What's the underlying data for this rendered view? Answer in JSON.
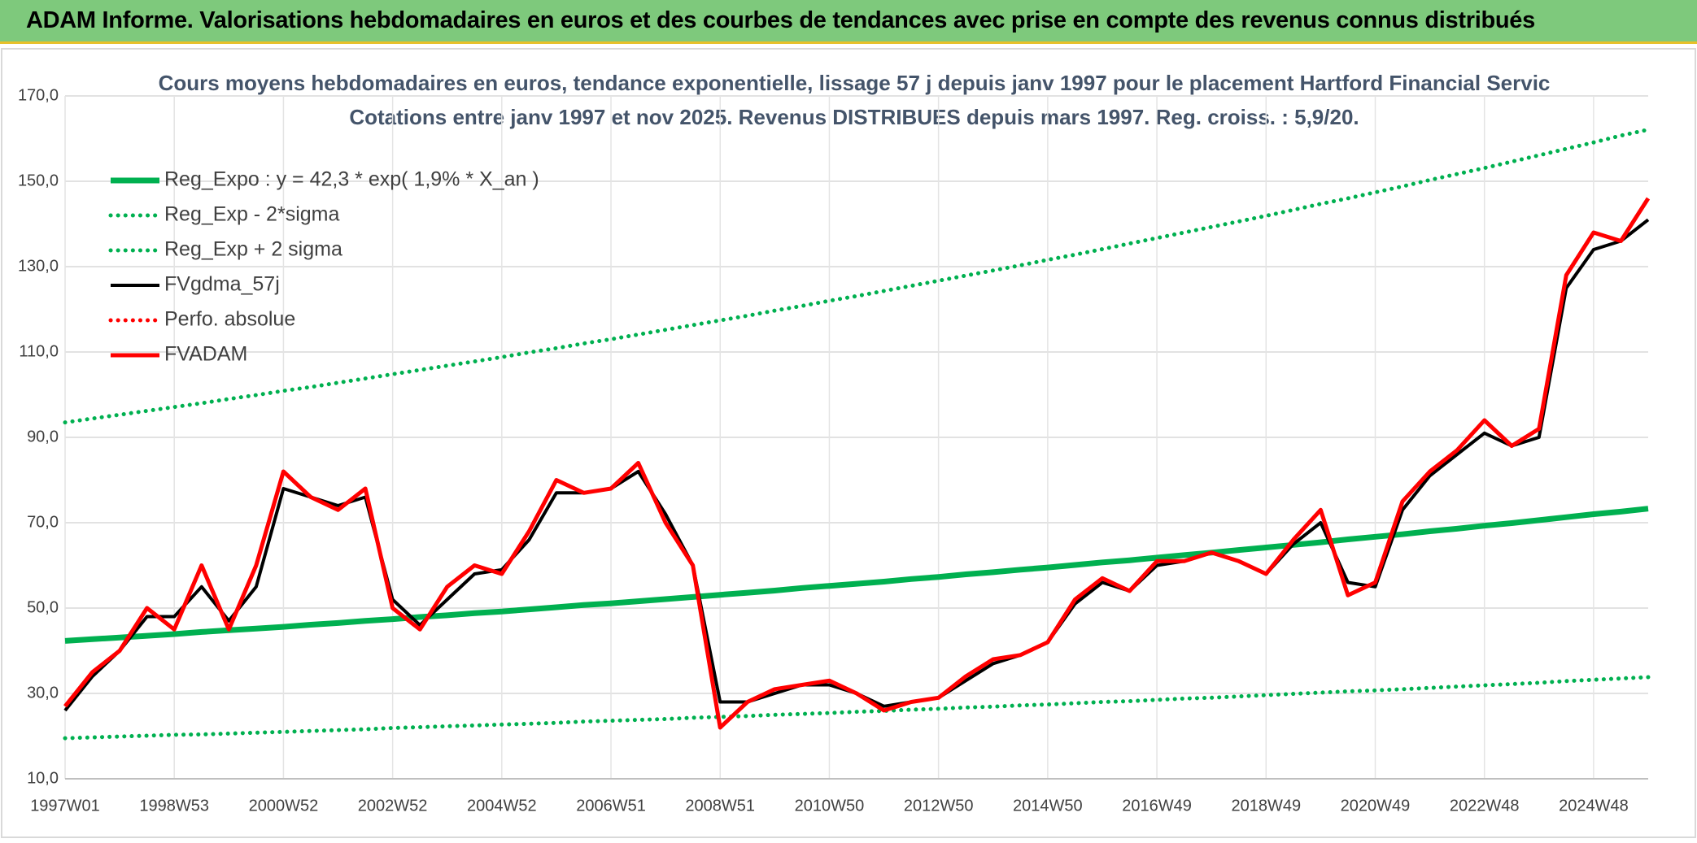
{
  "header": {
    "title": "ADAM Informe. Valorisations hebdomadaires en euros et des courbes de tendances avec prise en compte des revenus connus distribués"
  },
  "chart_data": {
    "type": "line",
    "title": "Cours moyens hebdomadaires en euros, tendance exponentielle, lissage 57 j depuis janv 1997 pour le placement Hartford Financial Servic",
    "subtitle": "Cotations entre janv 1997 et nov 2025. Revenus DISTRIBUES depuis mars 1997. Reg. croiss. : 5,9/20.",
    "categories": [
      "1997W01",
      null,
      null,
      null,
      "1998W53",
      null,
      null,
      null,
      "2000W52",
      null,
      null,
      null,
      "2002W52",
      null,
      null,
      null,
      "2004W52",
      null,
      null,
      null,
      "2006W51",
      null,
      null,
      null,
      "2008W51",
      null,
      null,
      null,
      "2010W50",
      null,
      null,
      null,
      "2012W50",
      null,
      null,
      null,
      "2014W50",
      null,
      null,
      null,
      "2016W49",
      null,
      null,
      null,
      "2018W49",
      null,
      null,
      null,
      "2020W49",
      null,
      null,
      null,
      "2022W48",
      null,
      null,
      null,
      "2024W48",
      null,
      null
    ],
    "ylim": [
      10,
      170
    ],
    "yticks": [
      {
        "value": 10,
        "label": "10,0"
      },
      {
        "value": 30,
        "label": "30,0"
      },
      {
        "value": 50,
        "label": "50,0"
      },
      {
        "value": 70,
        "label": "70,0"
      },
      {
        "value": 90,
        "label": "90,0"
      },
      {
        "value": 110,
        "label": "110,0"
      },
      {
        "value": 130,
        "label": "130,0"
      },
      {
        "value": 150,
        "label": "150,0"
      },
      {
        "value": 170,
        "label": "170,0"
      }
    ],
    "grid": true,
    "legend": "top-left",
    "series": [
      {
        "name": "Reg_Expo : y = 42,3 * exp( 1,9% *  X_an )",
        "color": "#00b050",
        "style": "solid",
        "values": [
          42.3,
          42.7,
          43.1,
          43.5,
          43.9,
          44.4,
          44.8,
          45.2,
          45.6,
          46.1,
          46.5,
          47.0,
          47.4,
          47.9,
          48.3,
          48.8,
          49.2,
          49.7,
          50.2,
          50.7,
          51.1,
          51.6,
          52.1,
          52.6,
          53.1,
          53.6,
          54.1,
          54.7,
          55.2,
          55.7,
          56.2,
          56.8,
          57.3,
          57.9,
          58.4,
          59.0,
          59.5,
          60.1,
          60.7,
          61.2,
          61.8,
          62.4,
          63.0,
          63.6,
          64.2,
          64.8,
          65.4,
          66.1,
          66.7,
          67.3,
          68.0,
          68.6,
          69.3,
          69.9,
          70.6,
          71.3,
          72.0,
          72.6,
          73.3
        ]
      },
      {
        "name": "Reg_Exp - 2*sigma",
        "color": "#00b050",
        "style": "dotted",
        "values": [
          19.5,
          19.7,
          19.9,
          20.1,
          20.3,
          20.4,
          20.6,
          20.8,
          21.0,
          21.2,
          21.4,
          21.6,
          21.9,
          22.1,
          22.3,
          22.5,
          22.7,
          22.9,
          23.1,
          23.4,
          23.6,
          23.8,
          24.0,
          24.3,
          24.5,
          24.7,
          25.0,
          25.2,
          25.4,
          25.7,
          25.9,
          26.2,
          26.4,
          26.7,
          26.9,
          27.2,
          27.4,
          27.7,
          28.0,
          28.2,
          28.5,
          28.8,
          29.0,
          29.3,
          29.6,
          29.9,
          30.2,
          30.5,
          30.7,
          31.0,
          31.3,
          31.6,
          31.9,
          32.2,
          32.5,
          32.9,
          33.2,
          33.5,
          33.8
        ]
      },
      {
        "name": "Reg_Exp + 2 sigma",
        "color": "#00b050",
        "style": "dotted",
        "values": [
          93.5,
          94.4,
          95.3,
          96.2,
          97.1,
          98.0,
          99.0,
          99.9,
          100.9,
          101.8,
          102.8,
          103.8,
          104.8,
          105.8,
          106.8,
          107.8,
          108.8,
          109.9,
          110.9,
          112.0,
          113.0,
          114.1,
          115.2,
          116.3,
          117.4,
          118.5,
          119.7,
          120.8,
          122.0,
          123.1,
          124.3,
          125.5,
          126.7,
          127.9,
          129.1,
          130.3,
          131.6,
          132.8,
          134.1,
          135.4,
          136.7,
          138.0,
          139.3,
          140.6,
          141.9,
          143.3,
          144.7,
          146.0,
          147.4,
          148.8,
          150.3,
          151.7,
          153.1,
          154.6,
          156.1,
          157.6,
          159.1,
          160.7,
          162.1
        ]
      },
      {
        "name": "FVgdma_57j",
        "color": "#000000",
        "style": "solid",
        "values": [
          26,
          34,
          40,
          48,
          48,
          55,
          47,
          55,
          78,
          76,
          74,
          76,
          52,
          46,
          52,
          58,
          59,
          66,
          77,
          77,
          78,
          82,
          72,
          60,
          28,
          28,
          30,
          32,
          32,
          30,
          27,
          28,
          29,
          33,
          37,
          39,
          42,
          51,
          56,
          54,
          60,
          61,
          63,
          61,
          58,
          65,
          70,
          56,
          55,
          73,
          81,
          86,
          91,
          88,
          90,
          125,
          134,
          136,
          141
        ]
      },
      {
        "name": "Perfo. absolue",
        "color": "#ff0000",
        "style": "dotted",
        "values": [
          null,
          null,
          null,
          null,
          null,
          null,
          null,
          null,
          null,
          null,
          null,
          null,
          null,
          null,
          null,
          null,
          null,
          null,
          null,
          null,
          null,
          null,
          null,
          null,
          null,
          null,
          null,
          null,
          null,
          null,
          null,
          null,
          null,
          null,
          null,
          null,
          null,
          null,
          null,
          null,
          null,
          null,
          null,
          null,
          null,
          null,
          null,
          null,
          null,
          null,
          null,
          null,
          null,
          null,
          null,
          null,
          null,
          null,
          null
        ]
      },
      {
        "name": "FVADAM",
        "color": "#ff0000",
        "style": "solid",
        "values": [
          27,
          35,
          40,
          50,
          45,
          60,
          45,
          60,
          82,
          76,
          73,
          78,
          50,
          45,
          55,
          60,
          58,
          68,
          80,
          77,
          78,
          84,
          70,
          60,
          22,
          28,
          31,
          32,
          33,
          30,
          26,
          28,
          29,
          34,
          38,
          39,
          42,
          52,
          57,
          54,
          61,
          61,
          63,
          61,
          58,
          66,
          73,
          53,
          56,
          75,
          82,
          87,
          94,
          88,
          92,
          128,
          138,
          136,
          146
        ]
      }
    ]
  }
}
